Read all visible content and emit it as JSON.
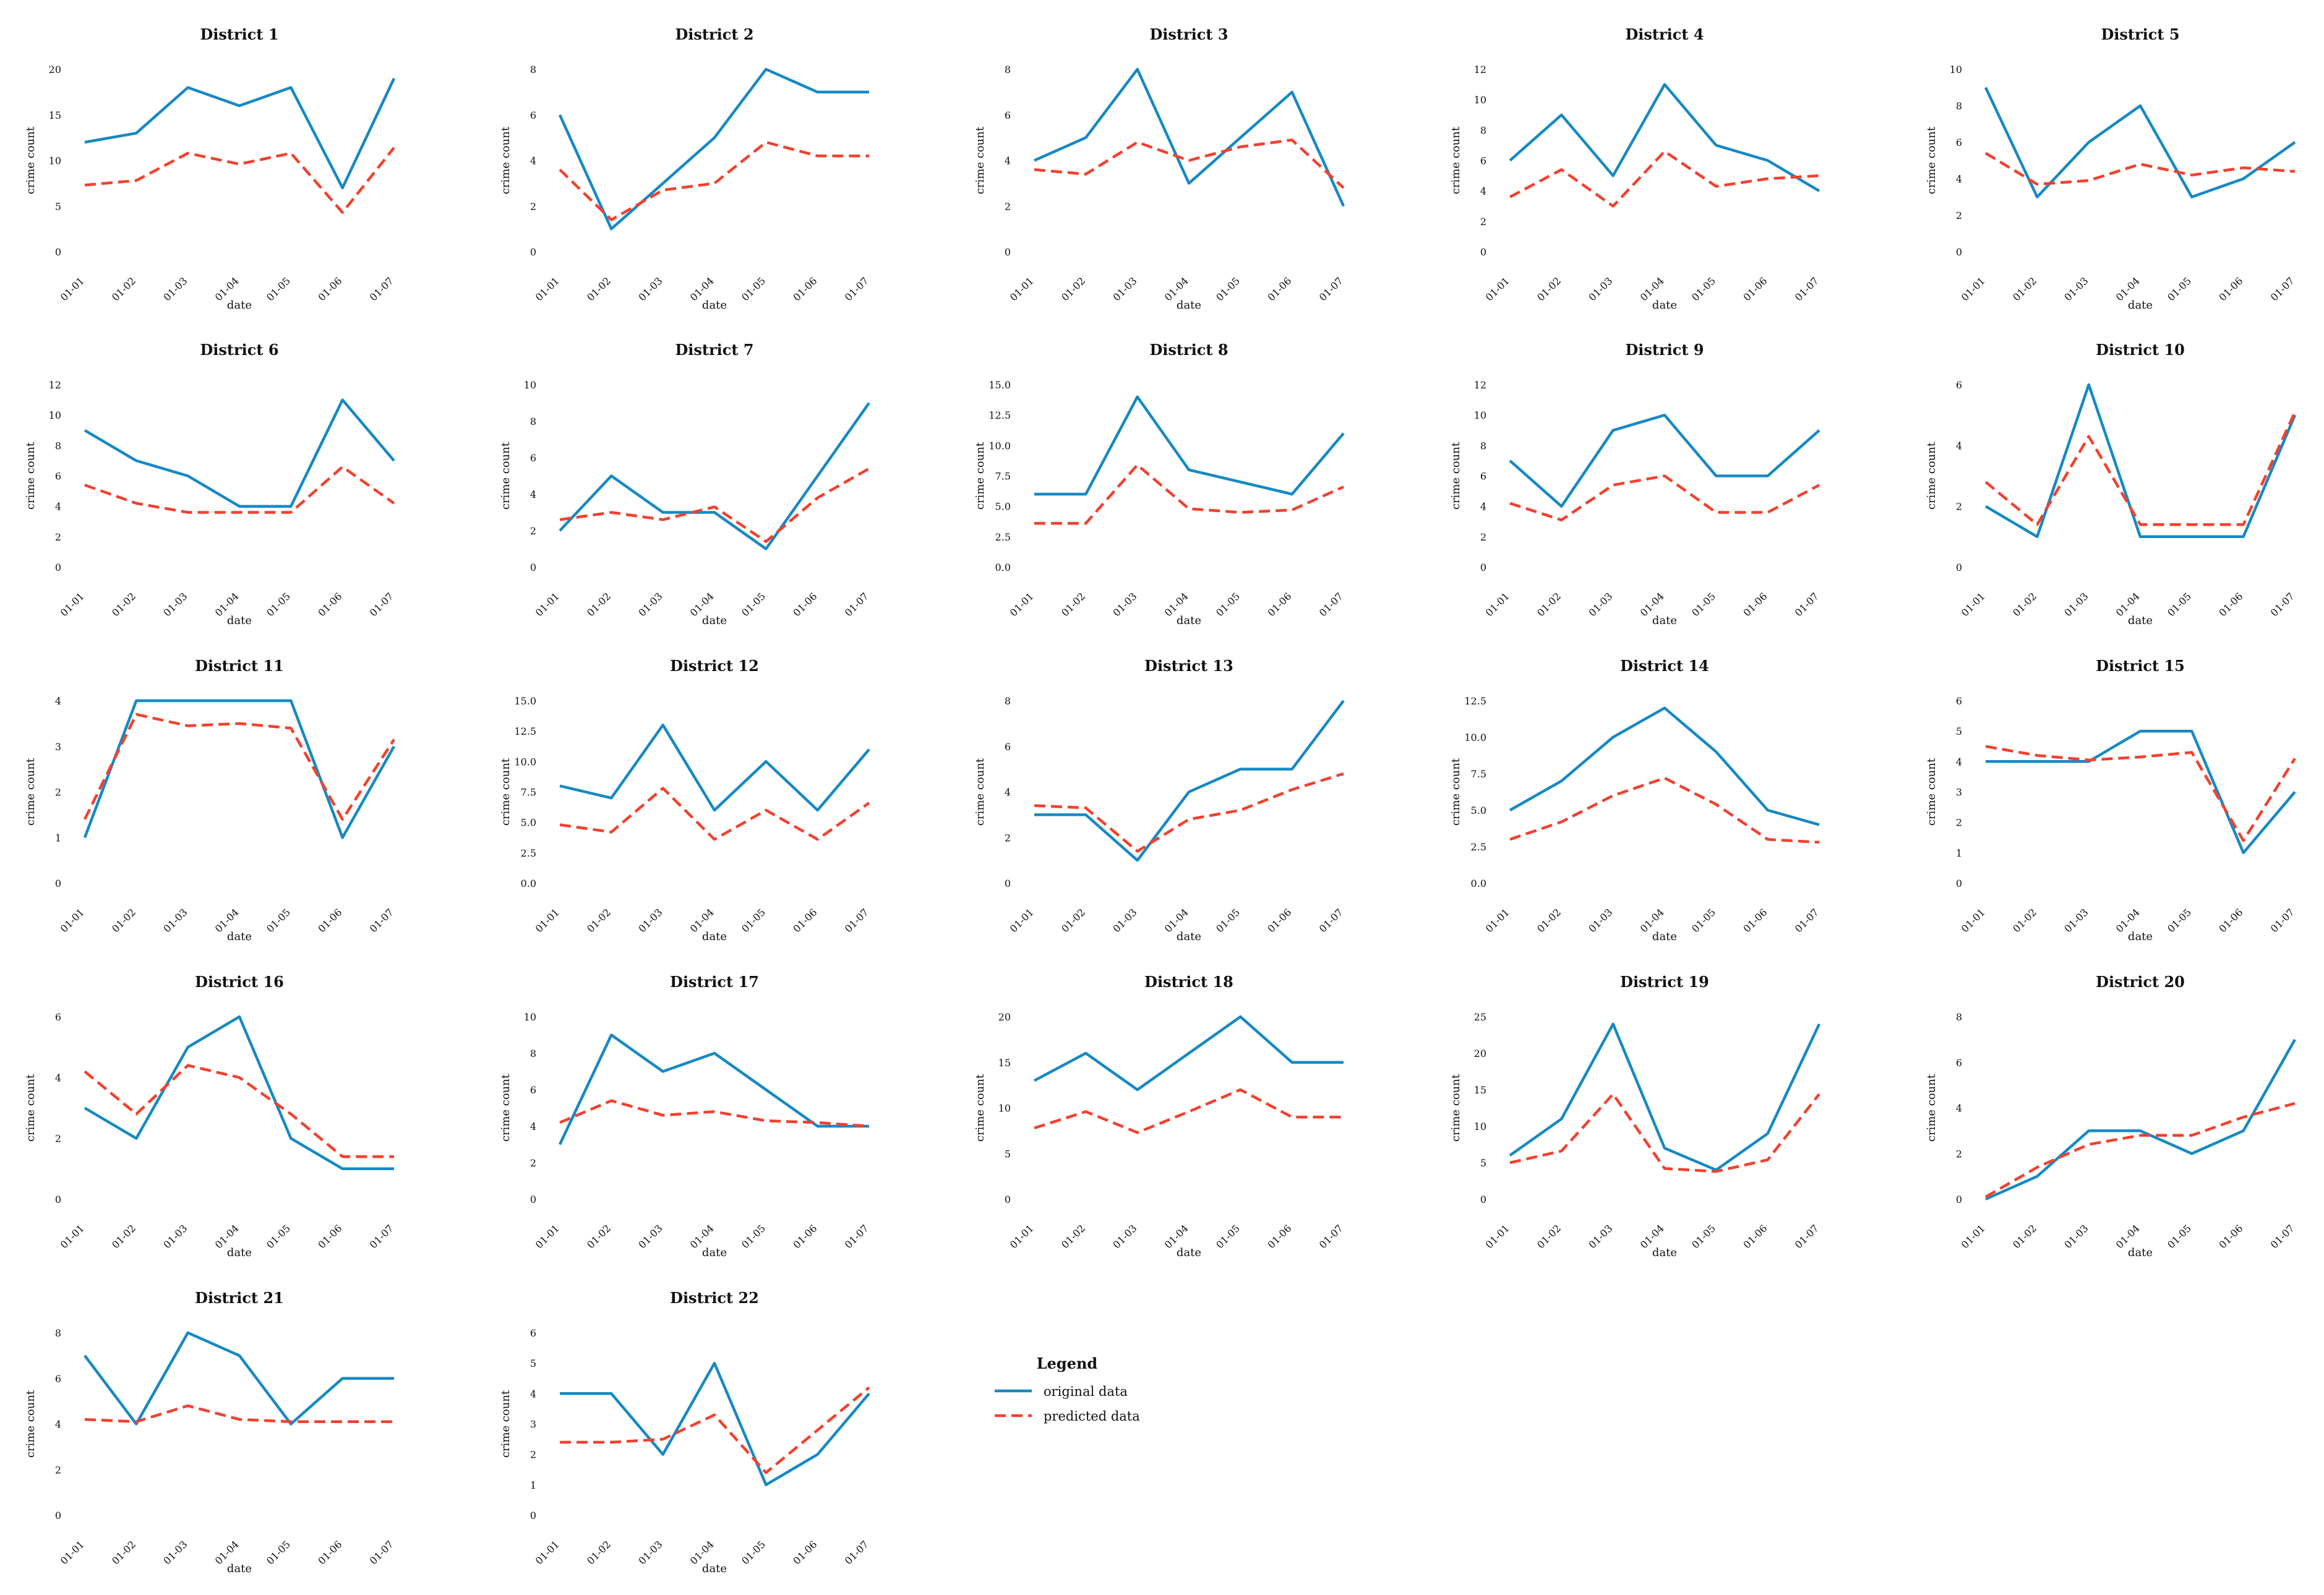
{
  "figure": {
    "colors": {
      "original": "#1689c4",
      "predicted": "#f2412e"
    },
    "legend": {
      "title": "Legend",
      "original_label": "original data",
      "predicted_label": "predicted data"
    }
  },
  "chart_data": [
    {
      "type": "line",
      "title": "District 1",
      "xlabel": "date",
      "ylabel": "crime count",
      "categories": [
        "01-01",
        "01-02",
        "01-03",
        "01-04",
        "01-05",
        "01-06",
        "01-07"
      ],
      "ylim": [
        0,
        20
      ],
      "yticks": [
        "0",
        "5",
        "10",
        "15",
        "20"
      ],
      "series": [
        {
          "name": "original data",
          "values": [
            12,
            13,
            18,
            16,
            18,
            7,
            19
          ]
        },
        {
          "name": "predicted data",
          "values": [
            7.3,
            7.8,
            10.8,
            9.6,
            10.8,
            4.3,
            11.4
          ]
        }
      ]
    },
    {
      "type": "line",
      "title": "District 2",
      "xlabel": "date",
      "ylabel": "crime count",
      "categories": [
        "01-01",
        "01-02",
        "01-03",
        "01-04",
        "01-05",
        "01-06",
        "01-07"
      ],
      "ylim": [
        0,
        8
      ],
      "yticks": [
        "0",
        "2",
        "4",
        "6",
        "8"
      ],
      "series": [
        {
          "name": "original data",
          "values": [
            6,
            1,
            3,
            5,
            8,
            7,
            7
          ]
        },
        {
          "name": "predicted data",
          "values": [
            3.6,
            1.4,
            2.7,
            3.0,
            4.8,
            4.2,
            4.2
          ]
        }
      ]
    },
    {
      "type": "line",
      "title": "District 3",
      "xlabel": "date",
      "ylabel": "crime count",
      "categories": [
        "01-01",
        "01-02",
        "01-03",
        "01-04",
        "01-05",
        "01-06",
        "01-07"
      ],
      "ylim": [
        0,
        8
      ],
      "yticks": [
        "0",
        "2",
        "4",
        "6",
        "8"
      ],
      "series": [
        {
          "name": "original data",
          "values": [
            4,
            5,
            8,
            3,
            5,
            7,
            2
          ]
        },
        {
          "name": "predicted data",
          "values": [
            3.6,
            3.4,
            4.8,
            4.0,
            4.6,
            4.9,
            2.8
          ]
        }
      ]
    },
    {
      "type": "line",
      "title": "District 4",
      "xlabel": "date",
      "ylabel": "crime count",
      "categories": [
        "01-01",
        "01-02",
        "01-03",
        "01-04",
        "01-05",
        "01-06",
        "01-07"
      ],
      "ylim": [
        0,
        12
      ],
      "yticks": [
        "0",
        "2",
        "4",
        "6",
        "8",
        "10",
        "12"
      ],
      "series": [
        {
          "name": "original data",
          "values": [
            6,
            9,
            5,
            11,
            7,
            6,
            4
          ]
        },
        {
          "name": "predicted data",
          "values": [
            3.6,
            5.4,
            3.0,
            6.6,
            4.3,
            4.8,
            5.0
          ]
        }
      ]
    },
    {
      "type": "line",
      "title": "District 5",
      "xlabel": "date",
      "ylabel": "crime count",
      "categories": [
        "01-01",
        "01-02",
        "01-03",
        "01-04",
        "01-05",
        "01-06",
        "01-07"
      ],
      "ylim": [
        0,
        10
      ],
      "yticks": [
        "0",
        "2",
        "4",
        "6",
        "8",
        "10"
      ],
      "series": [
        {
          "name": "original data",
          "values": [
            9,
            3,
            6,
            8,
            3,
            4,
            6
          ]
        },
        {
          "name": "predicted data",
          "values": [
            5.4,
            3.7,
            3.9,
            4.8,
            4.2,
            4.6,
            4.4
          ]
        }
      ]
    },
    {
      "type": "line",
      "title": "District 6",
      "xlabel": "date",
      "ylabel": "crime count",
      "categories": [
        "01-01",
        "01-02",
        "01-03",
        "01-04",
        "01-05",
        "01-06",
        "01-07"
      ],
      "ylim": [
        0,
        12
      ],
      "yticks": [
        "0",
        "2",
        "4",
        "6",
        "8",
        "10",
        "12"
      ],
      "series": [
        {
          "name": "original data",
          "values": [
            9,
            7,
            6,
            4,
            4,
            11,
            7
          ]
        },
        {
          "name": "predicted data",
          "values": [
            5.4,
            4.2,
            3.6,
            3.6,
            3.6,
            6.6,
            4.2
          ]
        }
      ]
    },
    {
      "type": "line",
      "title": "District 7",
      "xlabel": "date",
      "ylabel": "crime count",
      "categories": [
        "01-01",
        "01-02",
        "01-03",
        "01-04",
        "01-05",
        "01-06",
        "01-07"
      ],
      "ylim": [
        0,
        10
      ],
      "yticks": [
        "0",
        "2",
        "4",
        "6",
        "8",
        "10"
      ],
      "series": [
        {
          "name": "original data",
          "values": [
            2,
            5,
            3,
            3,
            1,
            5,
            9
          ]
        },
        {
          "name": "predicted data",
          "values": [
            2.6,
            3.0,
            2.6,
            3.3,
            1.4,
            3.8,
            5.4
          ]
        }
      ]
    },
    {
      "type": "line",
      "title": "District 8",
      "xlabel": "date",
      "ylabel": "crime count",
      "categories": [
        "01-01",
        "01-02",
        "01-03",
        "01-04",
        "01-05",
        "01-06",
        "01-07"
      ],
      "ylim": [
        0,
        15
      ],
      "yticks": [
        "0.0",
        "2.5",
        "5.0",
        "7.5",
        "10.0",
        "12.5",
        "15.0"
      ],
      "series": [
        {
          "name": "original data",
          "values": [
            6,
            6,
            14,
            8,
            7,
            6,
            11
          ]
        },
        {
          "name": "predicted data",
          "values": [
            3.6,
            3.6,
            8.4,
            4.8,
            4.5,
            4.7,
            6.6
          ]
        }
      ]
    },
    {
      "type": "line",
      "title": "District 9",
      "xlabel": "date",
      "ylabel": "crime count",
      "categories": [
        "01-01",
        "01-02",
        "01-03",
        "01-04",
        "01-05",
        "01-06",
        "01-07"
      ],
      "ylim": [
        0,
        12
      ],
      "yticks": [
        "0",
        "2",
        "4",
        "6",
        "8",
        "10",
        "12"
      ],
      "series": [
        {
          "name": "original data",
          "values": [
            7,
            4,
            9,
            10,
            6,
            6,
            9
          ]
        },
        {
          "name": "predicted data",
          "values": [
            4.2,
            3.1,
            5.4,
            6.0,
            3.6,
            3.6,
            5.4
          ]
        }
      ]
    },
    {
      "type": "line",
      "title": "District 10",
      "xlabel": "date",
      "ylabel": "crime count",
      "categories": [
        "01-01",
        "01-02",
        "01-03",
        "01-04",
        "01-05",
        "01-06",
        "01-07"
      ],
      "ylim": [
        0,
        6
      ],
      "yticks": [
        "0",
        "2",
        "4",
        "6"
      ],
      "series": [
        {
          "name": "original data",
          "values": [
            2,
            1,
            6,
            1,
            1,
            1,
            5
          ]
        },
        {
          "name": "predicted data",
          "values": [
            2.8,
            1.4,
            4.3,
            1.4,
            1.4,
            1.4,
            5.1
          ]
        }
      ]
    },
    {
      "type": "line",
      "title": "District 11",
      "xlabel": "date",
      "ylabel": "crime count",
      "categories": [
        "01-01",
        "01-02",
        "01-03",
        "01-04",
        "01-05",
        "01-06",
        "01-07"
      ],
      "ylim": [
        0,
        4
      ],
      "yticks": [
        "0",
        "1",
        "2",
        "3",
        "4"
      ],
      "series": [
        {
          "name": "original data",
          "values": [
            1,
            4,
            4,
            4,
            4,
            1,
            3
          ]
        },
        {
          "name": "predicted data",
          "values": [
            1.4,
            3.7,
            3.45,
            3.5,
            3.4,
            1.4,
            3.15
          ]
        }
      ]
    },
    {
      "type": "line",
      "title": "District 12",
      "xlabel": "date",
      "ylabel": "crime count",
      "categories": [
        "01-01",
        "01-02",
        "01-03",
        "01-04",
        "01-05",
        "01-06",
        "01-07"
      ],
      "ylim": [
        0,
        15
      ],
      "yticks": [
        "0.0",
        "2.5",
        "5.0",
        "7.5",
        "10.0",
        "12.5",
        "15.0"
      ],
      "series": [
        {
          "name": "original data",
          "values": [
            8,
            7,
            13,
            6,
            10,
            6,
            11
          ]
        },
        {
          "name": "predicted data",
          "values": [
            4.8,
            4.2,
            7.8,
            3.6,
            6.0,
            3.6,
            6.6
          ]
        }
      ]
    },
    {
      "type": "line",
      "title": "District 13",
      "xlabel": "date",
      "ylabel": "crime count",
      "categories": [
        "01-01",
        "01-02",
        "01-03",
        "01-04",
        "01-05",
        "01-06",
        "01-07"
      ],
      "ylim": [
        0,
        8
      ],
      "yticks": [
        "0",
        "2",
        "4",
        "6",
        "8"
      ],
      "series": [
        {
          "name": "original data",
          "values": [
            3,
            3,
            1,
            4,
            5,
            5,
            8
          ]
        },
        {
          "name": "predicted data",
          "values": [
            3.4,
            3.3,
            1.4,
            2.8,
            3.2,
            4.1,
            4.8
          ]
        }
      ]
    },
    {
      "type": "line",
      "title": "District 14",
      "xlabel": "date",
      "ylabel": "crime count",
      "categories": [
        "01-01",
        "01-02",
        "01-03",
        "01-04",
        "01-05",
        "01-06",
        "01-07"
      ],
      "ylim": [
        0,
        12.5
      ],
      "yticks": [
        "0.0",
        "2.5",
        "5.0",
        "7.5",
        "10.0",
        "12.5"
      ],
      "series": [
        {
          "name": "original data",
          "values": [
            5,
            7,
            10,
            12,
            9,
            5,
            4
          ]
        },
        {
          "name": "predicted data",
          "values": [
            3.0,
            4.2,
            6.0,
            7.2,
            5.4,
            3.0,
            2.8
          ]
        }
      ]
    },
    {
      "type": "line",
      "title": "District 15",
      "xlabel": "date",
      "ylabel": "crime count",
      "categories": [
        "01-01",
        "01-02",
        "01-03",
        "01-04",
        "01-05",
        "01-06",
        "01-07"
      ],
      "ylim": [
        0,
        6
      ],
      "yticks": [
        "0",
        "1",
        "2",
        "3",
        "4",
        "5",
        "6"
      ],
      "series": [
        {
          "name": "original data",
          "values": [
            4,
            4,
            4,
            5,
            5,
            1,
            3
          ]
        },
        {
          "name": "predicted data",
          "values": [
            4.5,
            4.2,
            4.05,
            4.15,
            4.3,
            1.4,
            4.1
          ]
        }
      ]
    },
    {
      "type": "line",
      "title": "District 16",
      "xlabel": "date",
      "ylabel": "crime count",
      "categories": [
        "01-01",
        "01-02",
        "01-03",
        "01-04",
        "01-05",
        "01-06",
        "01-07"
      ],
      "ylim": [
        0,
        6
      ],
      "yticks": [
        "0",
        "2",
        "4",
        "6"
      ],
      "series": [
        {
          "name": "original data",
          "values": [
            3,
            2,
            5,
            6,
            2,
            1,
            1
          ]
        },
        {
          "name": "predicted data",
          "values": [
            4.2,
            2.8,
            4.4,
            4.0,
            2.8,
            1.4,
            1.4
          ]
        }
      ]
    },
    {
      "type": "line",
      "title": "District 17",
      "xlabel": "date",
      "ylabel": "crime count",
      "categories": [
        "01-01",
        "01-02",
        "01-03",
        "01-04",
        "01-05",
        "01-06",
        "01-07"
      ],
      "ylim": [
        0,
        10
      ],
      "yticks": [
        "0",
        "2",
        "4",
        "6",
        "8",
        "10"
      ],
      "series": [
        {
          "name": "original data",
          "values": [
            3,
            9,
            7,
            8,
            6,
            4,
            4
          ]
        },
        {
          "name": "predicted data",
          "values": [
            4.2,
            5.4,
            4.6,
            4.8,
            4.3,
            4.2,
            4.0
          ]
        }
      ]
    },
    {
      "type": "line",
      "title": "District 18",
      "xlabel": "date",
      "ylabel": "crime count",
      "categories": [
        "01-01",
        "01-02",
        "01-03",
        "01-04",
        "01-05",
        "01-06",
        "01-07"
      ],
      "ylim": [
        0,
        20
      ],
      "yticks": [
        "0",
        "5",
        "10",
        "15",
        "20"
      ],
      "series": [
        {
          "name": "original data",
          "values": [
            13,
            16,
            12,
            16,
            20,
            15,
            15
          ]
        },
        {
          "name": "predicted data",
          "values": [
            7.8,
            9.6,
            7.3,
            9.6,
            12.0,
            9.0,
            9.0
          ]
        }
      ]
    },
    {
      "type": "line",
      "title": "District 19",
      "xlabel": "date",
      "ylabel": "crime count",
      "categories": [
        "01-01",
        "01-02",
        "01-03",
        "01-04",
        "01-05",
        "01-06",
        "01-07"
      ],
      "ylim": [
        0,
        25
      ],
      "yticks": [
        "0",
        "5",
        "10",
        "15",
        "20",
        "25"
      ],
      "series": [
        {
          "name": "original data",
          "values": [
            6,
            11,
            24,
            7,
            4,
            9,
            24
          ]
        },
        {
          "name": "predicted data",
          "values": [
            5.0,
            6.6,
            14.4,
            4.2,
            3.8,
            5.4,
            14.4
          ]
        }
      ]
    },
    {
      "type": "line",
      "title": "District 20",
      "xlabel": "date",
      "ylabel": "crime count",
      "categories": [
        "01-01",
        "01-02",
        "01-03",
        "01-04",
        "01-05",
        "01-06",
        "01-07"
      ],
      "ylim": [
        0,
        8
      ],
      "yticks": [
        "0",
        "2",
        "4",
        "6",
        "8"
      ],
      "series": [
        {
          "name": "original data",
          "values": [
            0,
            1,
            3,
            3,
            2,
            3,
            7
          ]
        },
        {
          "name": "predicted data",
          "values": [
            0.1,
            1.4,
            2.4,
            2.8,
            2.8,
            3.6,
            4.2
          ]
        }
      ]
    },
    {
      "type": "line",
      "title": "District 21",
      "xlabel": "date",
      "ylabel": "crime count",
      "categories": [
        "01-01",
        "01-02",
        "01-03",
        "01-04",
        "01-05",
        "01-06",
        "01-07"
      ],
      "ylim": [
        0,
        8
      ],
      "yticks": [
        "0",
        "2",
        "4",
        "6",
        "8"
      ],
      "series": [
        {
          "name": "original data",
          "values": [
            7,
            4,
            8,
            7,
            4,
            6,
            6
          ]
        },
        {
          "name": "predicted data",
          "values": [
            4.2,
            4.1,
            4.8,
            4.2,
            4.1,
            4.1,
            4.1
          ]
        }
      ]
    },
    {
      "type": "line",
      "title": "District 22",
      "xlabel": "date",
      "ylabel": "crime count",
      "categories": [
        "01-01",
        "01-02",
        "01-03",
        "01-04",
        "01-05",
        "01-06",
        "01-07"
      ],
      "ylim": [
        0,
        6
      ],
      "yticks": [
        "0",
        "1",
        "2",
        "3",
        "4",
        "5",
        "6"
      ],
      "series": [
        {
          "name": "original data",
          "values": [
            4,
            4,
            2,
            5,
            1,
            2,
            4
          ]
        },
        {
          "name": "predicted data",
          "values": [
            2.4,
            2.4,
            2.5,
            3.3,
            1.4,
            2.8,
            4.2
          ]
        }
      ]
    }
  ]
}
